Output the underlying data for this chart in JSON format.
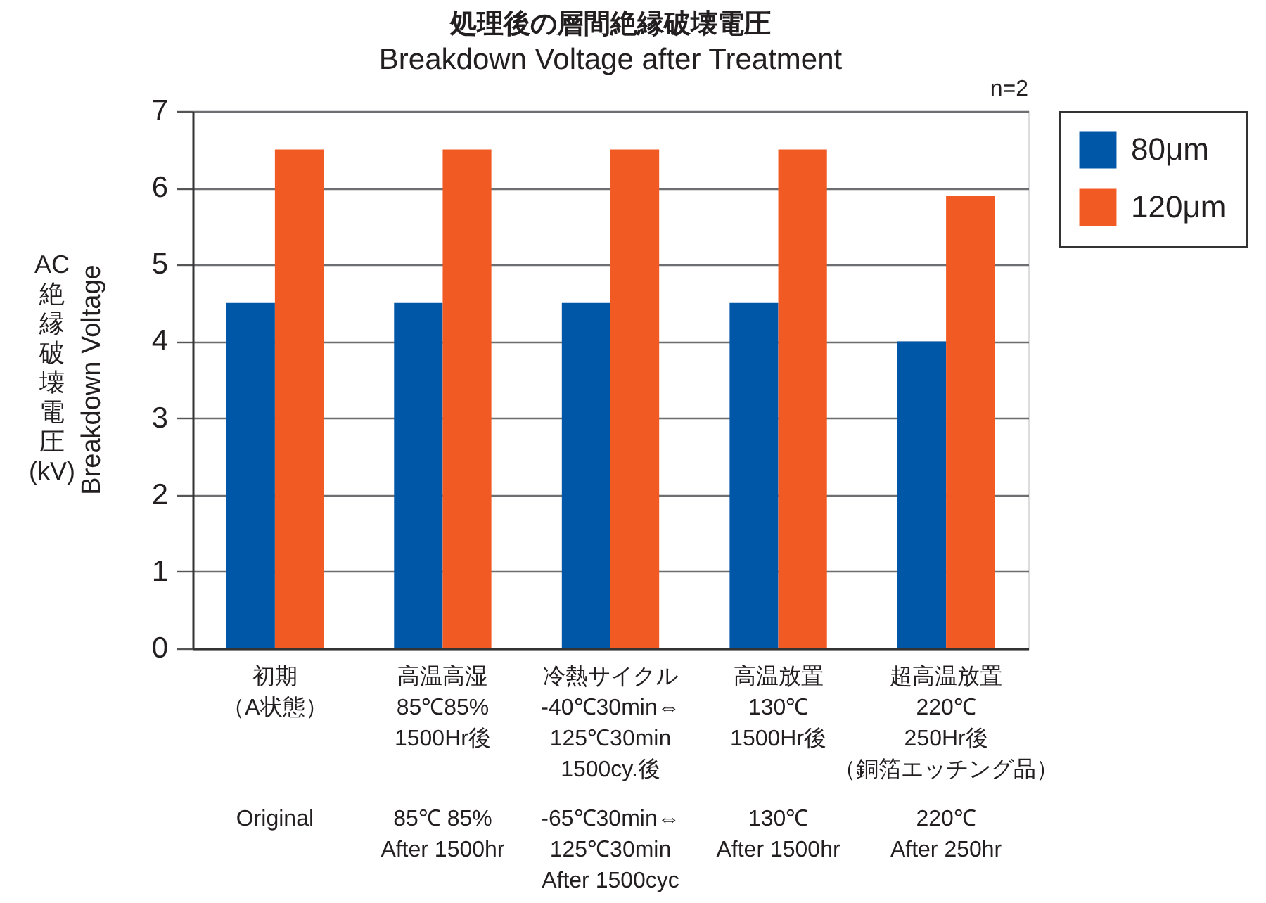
{
  "chart_data": {
    "type": "bar",
    "title": "処理後の層間絶縁破壊電圧",
    "subtitle": "Breakdown Voltage after Treatment",
    "ylabel": "AC絶縁破壊電圧(kV)\nBreakdown Voltage",
    "categories": [
      "初期（A状態）\n\nOriginal",
      "高温高湿\n85℃85%\n1500Hr後\n\n85℃ 85%\nAfter 1500hr",
      "冷熱サイクル\n-40℃30min⇔\n125℃30min\n1500cy.後\n\n-65℃30min⇔\n125℃30min\nAfter 1500cyc",
      "高温放置\n130℃\n1500Hr後\n\n130℃\nAfter 1500hr",
      "超高温放置\n220℃\n250Hr後（銅箔エッチング品）\n\n220℃\nAfter 250hr"
    ],
    "series": [
      {
        "name": "80μm",
        "color": "#0057a8",
        "values": [
          4.5,
          4.5,
          4.5,
          4.5,
          4.0
        ]
      },
      {
        "name": "120μm",
        "color": "#f15a22",
        "values": [
          6.5,
          6.5,
          6.5,
          6.5,
          5.9
        ]
      }
    ],
    "ylim": [
      0,
      7
    ],
    "yticks": [
      0,
      1,
      2,
      3,
      4,
      5,
      6,
      7
    ],
    "grid": "y",
    "legend": "right",
    "annotations": [
      "n=2"
    ]
  }
}
